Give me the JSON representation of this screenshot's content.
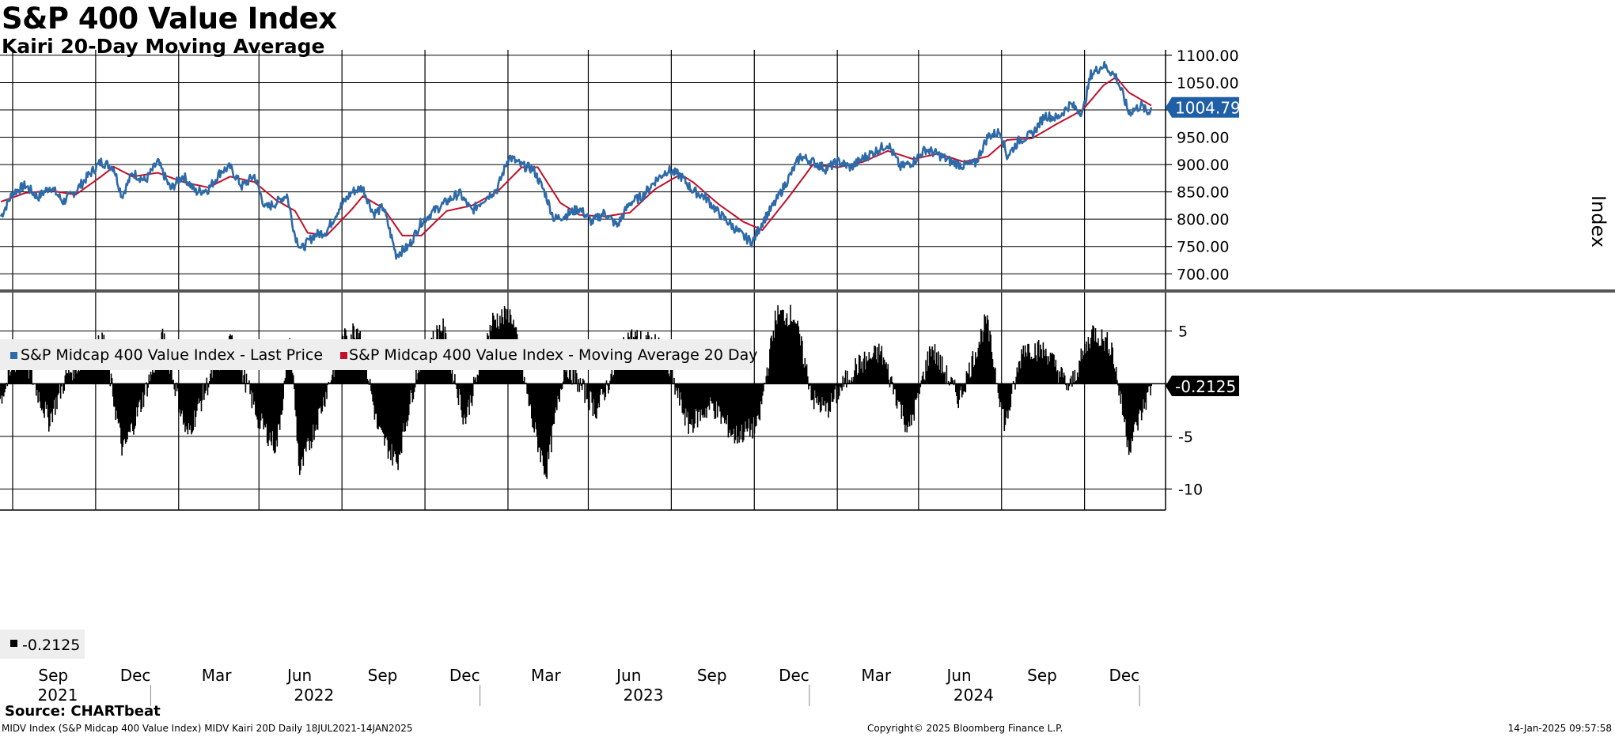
{
  "title": "S&P 400 Value Index",
  "subtitle": "Kairi 20-Day Moving Average",
  "source": "Source: CHARTbeat",
  "footer": {
    "left": "MIDV Index (S&P Midcap 400 Value Index) MIDV Kairi 20D  Daily 18JUL2021-14JAN2025",
    "center": "Copyright© 2025 Bloomberg Finance L.P.",
    "right": "14-Jan-2025 09:57:58"
  },
  "colors": {
    "price": "#2e6aa8",
    "ma": "#c0102a",
    "kairi": "#000000",
    "price_tag": "#1f5fa6",
    "kairi_tag": "#000000"
  },
  "chart_data": [
    {
      "type": "line",
      "title": "S&P 400 Value Index",
      "ylabel": "Index",
      "ylim": [
        670,
        1110
      ],
      "yticks": [
        "700.00",
        "750.00",
        "800.00",
        "850.00",
        "900.00",
        "950.00",
        "1000.00",
        "1050.00",
        "1100.00"
      ],
      "last_value_label": "1004.79",
      "legend": [
        "S&P Midcap 400 Value Index - Last Price",
        "S&P Midcap 400 Value Index - Moving Average 20 Day"
      ],
      "x_month_labels": [
        "Sep",
        "Dec",
        "Mar",
        "Jun",
        "Sep",
        "Dec",
        "Mar",
        "Jun",
        "Sep",
        "Dec",
        "Mar",
        "Jun",
        "Sep",
        "Dec"
      ],
      "x_year_labels": [
        "2021",
        "2022",
        "2023",
        "2024"
      ],
      "x_range": [
        "2021-07-18",
        "2025-01-14"
      ],
      "series": [
        {
          "name": "S&P Midcap 400 Value Index - Last Price",
          "points": [
            [
              "2021-07-19",
              805
            ],
            [
              "2021-08-01",
              848
            ],
            [
              "2021-08-15",
              862
            ],
            [
              "2021-08-29",
              840
            ],
            [
              "2021-09-12",
              860
            ],
            [
              "2021-09-26",
              832
            ],
            [
              "2021-10-10",
              852
            ],
            [
              "2021-10-24",
              880
            ],
            [
              "2021-11-07",
              905
            ],
            [
              "2021-11-21",
              895
            ],
            [
              "2021-11-30",
              842
            ],
            [
              "2021-12-12",
              885
            ],
            [
              "2021-12-26",
              870
            ],
            [
              "2022-01-09",
              905
            ],
            [
              "2022-01-23",
              855
            ],
            [
              "2022-02-06",
              880
            ],
            [
              "2022-02-20",
              850
            ],
            [
              "2022-03-06",
              855
            ],
            [
              "2022-03-20",
              888
            ],
            [
              "2022-03-30",
              895
            ],
            [
              "2022-04-12",
              860
            ],
            [
              "2022-04-26",
              880
            ],
            [
              "2022-05-08",
              820
            ],
            [
              "2022-05-20",
              830
            ],
            [
              "2022-06-01",
              845
            ],
            [
              "2022-06-10",
              770
            ],
            [
              "2022-06-17",
              745
            ],
            [
              "2022-07-01",
              770
            ],
            [
              "2022-07-15",
              778
            ],
            [
              "2022-07-29",
              820
            ],
            [
              "2022-08-12",
              850
            ],
            [
              "2022-08-24",
              858
            ],
            [
              "2022-09-05",
              810
            ],
            [
              "2022-09-16",
              822
            ],
            [
              "2022-09-30",
              735
            ],
            [
              "2022-10-14",
              750
            ],
            [
              "2022-10-28",
              795
            ],
            [
              "2022-11-11",
              815
            ],
            [
              "2022-11-25",
              832
            ],
            [
              "2022-12-09",
              848
            ],
            [
              "2022-12-23",
              815
            ],
            [
              "2023-01-06",
              838
            ],
            [
              "2023-01-20",
              855
            ],
            [
              "2023-02-02",
              915
            ],
            [
              "2023-02-16",
              898
            ],
            [
              "2023-03-01",
              892
            ],
            [
              "2023-03-14",
              848
            ],
            [
              "2023-03-24",
              800
            ],
            [
              "2023-04-07",
              808
            ],
            [
              "2023-04-21",
              820
            ],
            [
              "2023-05-05",
              795
            ],
            [
              "2023-05-19",
              812
            ],
            [
              "2023-06-02",
              788
            ],
            [
              "2023-06-16",
              830
            ],
            [
              "2023-06-30",
              842
            ],
            [
              "2023-07-14",
              870
            ],
            [
              "2023-07-28",
              890
            ],
            [
              "2023-08-11",
              880
            ],
            [
              "2023-08-25",
              852
            ],
            [
              "2023-09-08",
              840
            ],
            [
              "2023-09-22",
              812
            ],
            [
              "2023-10-06",
              790
            ],
            [
              "2023-10-20",
              768
            ],
            [
              "2023-10-30",
              758
            ],
            [
              "2023-11-10",
              795
            ],
            [
              "2023-11-24",
              830
            ],
            [
              "2023-12-08",
              872
            ],
            [
              "2023-12-22",
              915
            ],
            [
              "2024-01-05",
              905
            ],
            [
              "2024-01-19",
              892
            ],
            [
              "2024-02-02",
              905
            ],
            [
              "2024-02-16",
              895
            ],
            [
              "2024-03-01",
              912
            ],
            [
              "2024-03-15",
              925
            ],
            [
              "2024-03-28",
              938
            ],
            [
              "2024-04-11",
              895
            ],
            [
              "2024-04-25",
              905
            ],
            [
              "2024-05-09",
              928
            ],
            [
              "2024-05-23",
              918
            ],
            [
              "2024-06-06",
              905
            ],
            [
              "2024-06-20",
              898
            ],
            [
              "2024-07-03",
              902
            ],
            [
              "2024-07-17",
              952
            ],
            [
              "2024-07-31",
              960
            ],
            [
              "2024-08-07",
              915
            ],
            [
              "2024-08-21",
              945
            ],
            [
              "2024-09-04",
              955
            ],
            [
              "2024-09-18",
              990
            ],
            [
              "2024-10-02",
              985
            ],
            [
              "2024-10-16",
              1010
            ],
            [
              "2024-10-30",
              995
            ],
            [
              "2024-11-08",
              1065
            ],
            [
              "2024-11-22",
              1082
            ],
            [
              "2024-11-29",
              1072
            ],
            [
              "2024-12-06",
              1060
            ],
            [
              "2024-12-13",
              1030
            ],
            [
              "2024-12-20",
              995
            ],
            [
              "2025-01-03",
              1008
            ],
            [
              "2025-01-10",
              994
            ],
            [
              "2025-01-14",
              1004.79
            ]
          ]
        },
        {
          "name": "S&P Midcap 400 Value Index - Moving Average 20 Day",
          "points": [
            [
              "2021-07-19",
              832
            ],
            [
              "2021-08-15",
              848
            ],
            [
              "2021-09-12",
              852
            ],
            [
              "2021-10-10",
              845
            ],
            [
              "2021-11-07",
              878
            ],
            [
              "2021-11-21",
              896
            ],
            [
              "2021-12-12",
              878
            ],
            [
              "2022-01-09",
              885
            ],
            [
              "2022-02-06",
              868
            ],
            [
              "2022-03-06",
              858
            ],
            [
              "2022-03-30",
              878
            ],
            [
              "2022-04-26",
              868
            ],
            [
              "2022-05-20",
              835
            ],
            [
              "2022-06-10",
              815
            ],
            [
              "2022-06-24",
              775
            ],
            [
              "2022-07-15",
              770
            ],
            [
              "2022-08-12",
              818
            ],
            [
              "2022-08-24",
              842
            ],
            [
              "2022-09-16",
              820
            ],
            [
              "2022-10-07",
              770
            ],
            [
              "2022-10-28",
              770
            ],
            [
              "2022-11-25",
              815
            ],
            [
              "2022-12-23",
              825
            ],
            [
              "2023-01-20",
              850
            ],
            [
              "2023-02-16",
              895
            ],
            [
              "2023-03-06",
              895
            ],
            [
              "2023-03-31",
              830
            ],
            [
              "2023-04-21",
              808
            ],
            [
              "2023-05-19",
              805
            ],
            [
              "2023-06-16",
              812
            ],
            [
              "2023-07-14",
              855
            ],
            [
              "2023-08-11",
              882
            ],
            [
              "2023-08-25",
              868
            ],
            [
              "2023-09-22",
              828
            ],
            [
              "2023-10-20",
              795
            ],
            [
              "2023-11-10",
              780
            ],
            [
              "2023-12-08",
              838
            ],
            [
              "2024-01-05",
              900
            ],
            [
              "2024-02-02",
              895
            ],
            [
              "2024-03-01",
              905
            ],
            [
              "2024-03-28",
              925
            ],
            [
              "2024-04-25",
              910
            ],
            [
              "2024-05-23",
              920
            ],
            [
              "2024-06-20",
              905
            ],
            [
              "2024-07-17",
              915
            ],
            [
              "2024-08-07",
              945
            ],
            [
              "2024-09-04",
              948
            ],
            [
              "2024-10-02",
              975
            ],
            [
              "2024-10-30",
              1000
            ],
            [
              "2024-11-22",
              1045
            ],
            [
              "2024-12-06",
              1060
            ],
            [
              "2024-12-20",
              1032
            ],
            [
              "2025-01-14",
              1008
            ]
          ]
        }
      ]
    },
    {
      "type": "bar",
      "title": "Kairi 20-Day Moving Average",
      "ylim": [
        -12,
        8.5
      ],
      "yticks": [
        "5",
        "0",
        "-5",
        "-10"
      ],
      "last_value_label": "-0.2125",
      "legend": [
        "-0.2125"
      ],
      "series": [
        {
          "name": "MIDV Kairi 20D",
          "points": [
            [
              "2021-07-18",
              -1.5
            ],
            [
              "2021-08-10",
              3.2
            ],
            [
              "2021-09-10",
              -3.5
            ],
            [
              "2021-10-01",
              1.0
            ],
            [
              "2021-11-10",
              4.0
            ],
            [
              "2021-12-01",
              -6.5
            ],
            [
              "2021-12-25",
              -1.0
            ],
            [
              "2022-01-15",
              4.5
            ],
            [
              "2022-02-10",
              -5.0
            ],
            [
              "2022-03-10",
              1.0
            ],
            [
              "2022-04-01",
              4.0
            ],
            [
              "2022-05-01",
              -3.5
            ],
            [
              "2022-05-20",
              -6.0
            ],
            [
              "2022-06-05",
              4.0
            ],
            [
              "2022-06-15",
              -8.5
            ],
            [
              "2022-07-10",
              -2.0
            ],
            [
              "2022-08-01",
              4.0
            ],
            [
              "2022-08-20",
              5.5
            ],
            [
              "2022-09-10",
              -4.5
            ],
            [
              "2022-10-01",
              -7.5
            ],
            [
              "2022-10-25",
              2.0
            ],
            [
              "2022-11-20",
              5.5
            ],
            [
              "2022-12-15",
              -3.5
            ],
            [
              "2023-01-15",
              6.0
            ],
            [
              "2023-02-05",
              6.5
            ],
            [
              "2023-03-01",
              -4.0
            ],
            [
              "2023-03-15",
              -8.5
            ],
            [
              "2023-04-05",
              2.0
            ],
            [
              "2023-05-10",
              -2.5
            ],
            [
              "2023-06-15",
              4.5
            ],
            [
              "2023-07-20",
              3.5
            ],
            [
              "2023-08-20",
              -4.0
            ],
            [
              "2023-09-15",
              -2.0
            ],
            [
              "2023-10-10",
              -5.0
            ],
            [
              "2023-11-05",
              -4.0
            ],
            [
              "2023-11-25",
              6.5
            ],
            [
              "2023-12-15",
              6.5
            ],
            [
              "2024-01-05",
              -1.5
            ],
            [
              "2024-01-20",
              -2.5
            ],
            [
              "2024-02-20",
              1.5
            ],
            [
              "2024-03-20",
              3.0
            ],
            [
              "2024-04-20",
              -4.5
            ],
            [
              "2024-05-15",
              3.5
            ],
            [
              "2024-06-15",
              -1.5
            ],
            [
              "2024-07-15",
              6.0
            ],
            [
              "2024-08-05",
              -4.0
            ],
            [
              "2024-08-25",
              3.5
            ],
            [
              "2024-09-20",
              3.0
            ],
            [
              "2024-10-15",
              -0.5
            ],
            [
              "2024-11-10",
              5.0
            ],
            [
              "2024-12-01",
              3.5
            ],
            [
              "2024-12-20",
              -6.0
            ],
            [
              "2025-01-14",
              -0.2125
            ]
          ]
        }
      ]
    }
  ]
}
